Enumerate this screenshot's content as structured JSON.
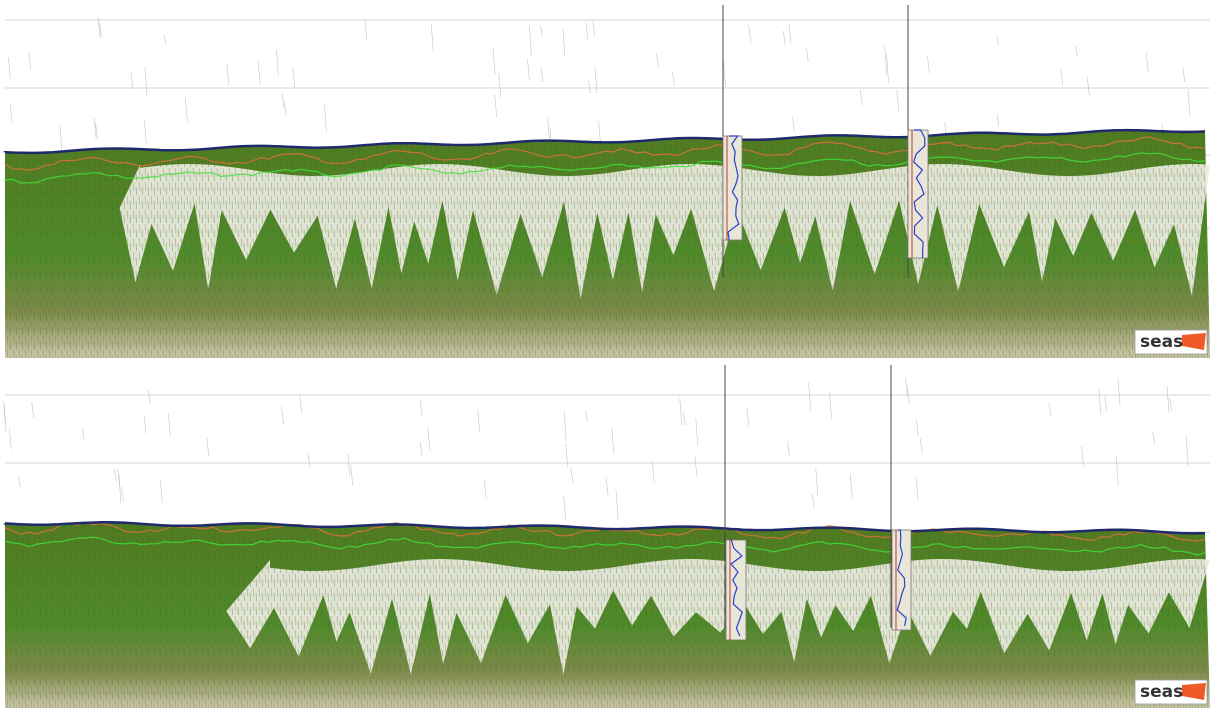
{
  "panels": [
    {
      "logo": "seas"
    },
    {
      "logo": "seas"
    }
  ]
}
